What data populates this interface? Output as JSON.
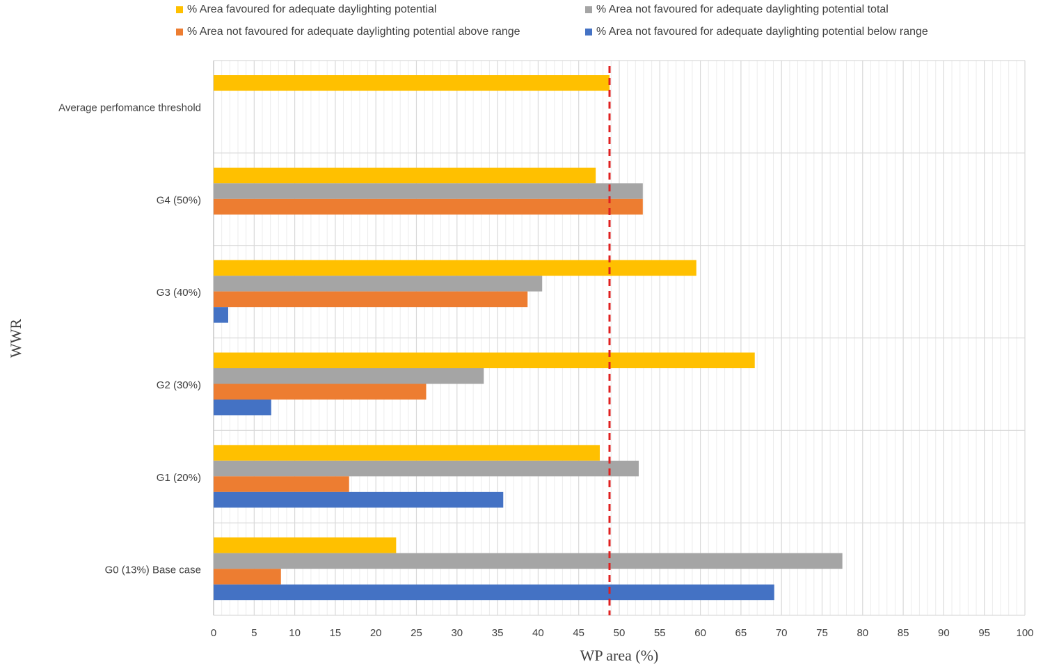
{
  "chart_data": {
    "type": "bar",
    "orientation": "horizontal",
    "categories": [
      "G0 (13%) Base case",
      "G1 (20%)",
      "G2 (30%)",
      "G3 (40%)",
      "G4 (50%)",
      "Average perfomance  threshold"
    ],
    "series": [
      {
        "name": "% Area favoured for adequate daylighting potential",
        "color": "#ffc000",
        "values": [
          22.5,
          47.6,
          66.7,
          59.5,
          47.1,
          48.8
        ]
      },
      {
        "name": "% Area not favoured for adequate daylighting potential  total",
        "color": "#a5a5a5",
        "values": [
          77.5,
          52.4,
          33.3,
          40.5,
          52.9,
          null
        ]
      },
      {
        "name": "% Area not favoured for adequate daylighting potential  above  range",
        "color": "#ed7d31",
        "values": [
          8.3,
          16.7,
          26.2,
          38.7,
          52.9,
          null
        ]
      },
      {
        "name": "% Area not favoured for adequate daylighting potential  below  range",
        "color": "#4472c4",
        "values": [
          69.1,
          35.7,
          7.1,
          1.8,
          null,
          null
        ]
      }
    ],
    "xlabel": "WP area (%)",
    "ylabel": "WWR",
    "xlim": [
      0,
      100
    ],
    "xticks": [
      "0",
      "5",
      "10",
      "15",
      "20",
      "25",
      "30",
      "35",
      "40",
      "45",
      "50",
      "55",
      "60",
      "65",
      "70",
      "75",
      "80",
      "85",
      "90",
      "95",
      "100"
    ],
    "threshold": {
      "value": 48.8,
      "color": "#e02020",
      "style": "dashed"
    },
    "grid": true,
    "legend_position": "top"
  }
}
